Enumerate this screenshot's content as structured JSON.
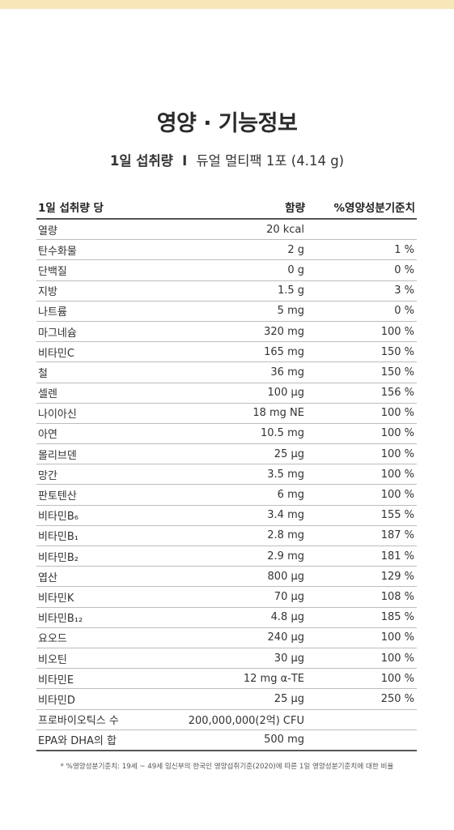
{
  "title": "영양 · 기능정보",
  "subtitle": {
    "label": "1일 섭취량",
    "separator": "I",
    "value": "듀얼 멀티팩 1포 (4.14 g)"
  },
  "table": {
    "headers": {
      "name": "1일 섭취량 당",
      "amount": "함량",
      "percent": "%영양성분기준치"
    },
    "rows": [
      {
        "name": "열량",
        "amount": "20 kcal",
        "percent": ""
      },
      {
        "name": "탄수화물",
        "amount": "2 g",
        "percent": "1 %"
      },
      {
        "name": "단백질",
        "amount": "0 g",
        "percent": "0 %"
      },
      {
        "name": "지방",
        "amount": "1.5 g",
        "percent": "3 %"
      },
      {
        "name": "나트륨",
        "amount": "5 mg",
        "percent": "0 %"
      },
      {
        "name": "마그네슘",
        "amount": "320 mg",
        "percent": "100 %"
      },
      {
        "name": "비타민C",
        "amount": "165 mg",
        "percent": "150 %"
      },
      {
        "name": "철",
        "amount": "36 mg",
        "percent": "150 %"
      },
      {
        "name": "셀렌",
        "amount": "100 μg",
        "percent": "156 %"
      },
      {
        "name": "나이아신",
        "amount": "18 mg NE",
        "percent": "100 %"
      },
      {
        "name": "아연",
        "amount": "10.5 mg",
        "percent": "100 %"
      },
      {
        "name": "몰리브덴",
        "amount": "25 μg",
        "percent": "100 %"
      },
      {
        "name": "망간",
        "amount": "3.5 mg",
        "percent": "100 %"
      },
      {
        "name": "판토텐산",
        "amount": "6 mg",
        "percent": "100 %"
      },
      {
        "name": "비타민B₆",
        "amount": "3.4 mg",
        "percent": "155 %"
      },
      {
        "name": "비타민B₁",
        "amount": "2.8 mg",
        "percent": "187 %"
      },
      {
        "name": "비타민B₂",
        "amount": "2.9 mg",
        "percent": "181 %"
      },
      {
        "name": "엽산",
        "amount": "800 μg",
        "percent": "129 %"
      },
      {
        "name": "비타민K",
        "amount": "70 μg",
        "percent": "108 %"
      },
      {
        "name": "비타민B₁₂",
        "amount": "4.8 μg",
        "percent": "185 %"
      },
      {
        "name": "요오드",
        "amount": "240 μg",
        "percent": "100 %"
      },
      {
        "name": "비오틴",
        "amount": "30 μg",
        "percent": "100 %"
      },
      {
        "name": "비타민E",
        "amount": "12 mg α-TE",
        "percent": "100 %"
      },
      {
        "name": "비타민D",
        "amount": "25 μg",
        "percent": "250 %"
      },
      {
        "name": "프로바이오틱스 수",
        "amount": "200,000,000(2억) CFU",
        "percent": ""
      },
      {
        "name": "EPA와 DHA의 합",
        "amount": "500 mg",
        "percent": ""
      }
    ]
  },
  "footnote": "* %영양성분기준치: 19세 ~ 49세 임신부의 한국인 영양섭취기준(2020)에 따른 1일 영양성분기준치에 대한 비율",
  "colors": {
    "top_band": "#f7e6b8",
    "text": "#2b2b2b",
    "rule": "#555555",
    "divider": "#bdbdbd"
  }
}
